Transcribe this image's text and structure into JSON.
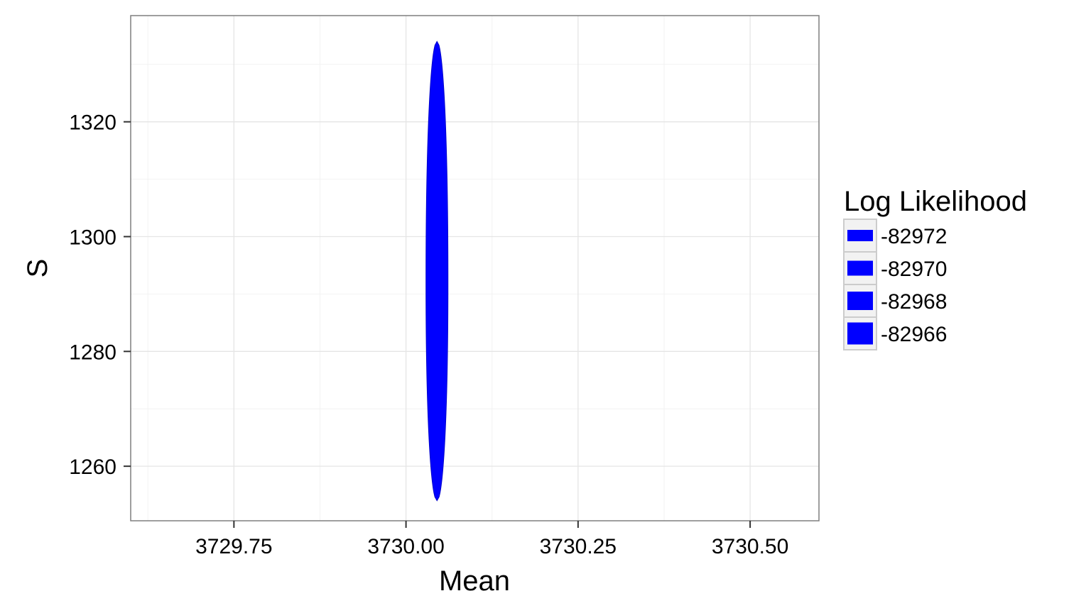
{
  "chart_data": {
    "type": "area",
    "title": "",
    "xlabel": "Mean",
    "ylabel": "S",
    "xlim": [
      3729.6,
      3730.6
    ],
    "ylim": [
      1250.5,
      1338.5
    ],
    "x_ticks": [
      {
        "value": 3729.75,
        "label": "3729.75"
      },
      {
        "value": 3730.0,
        "label": "3730.00"
      },
      {
        "value": 3730.25,
        "label": "3730.25"
      },
      {
        "value": 3730.5,
        "label": "3730.50"
      }
    ],
    "y_ticks": [
      {
        "value": 1260,
        "label": "1260"
      },
      {
        "value": 1280,
        "label": "1280"
      },
      {
        "value": 1300,
        "label": "1300"
      },
      {
        "value": 1320,
        "label": "1320"
      }
    ],
    "grid": true,
    "legend": {
      "title": "Log Likelihood",
      "placement": "right",
      "entries": [
        {
          "label": "-82972",
          "color": "#0000ff"
        },
        {
          "label": "-82970",
          "color": "#0000ff"
        },
        {
          "label": "-82968",
          "color": "#0000ff"
        },
        {
          "label": "-82966",
          "color": "#0000ff"
        }
      ]
    },
    "region": {
      "color": "#0000ff",
      "center_x": 3730.045,
      "x_half_width_max": 0.016,
      "y_min": 1254,
      "y_max": 1334,
      "y_peak": 1292
    }
  }
}
